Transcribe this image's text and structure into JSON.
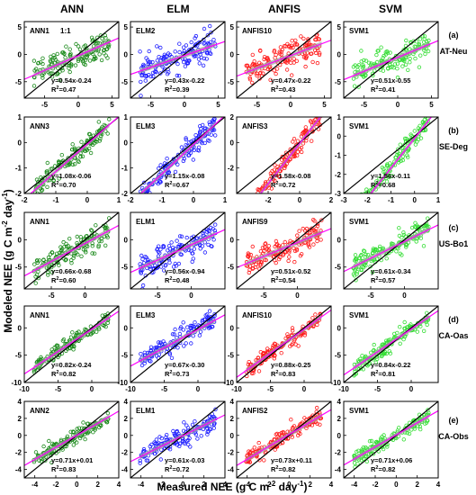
{
  "figure": {
    "ylabel": "Modeled NEE (g C m",
    "ylabel_sup": "-2",
    "ylabel_mid": " day",
    "ylabel_sup2": "-1",
    "ylabel_end": ")",
    "xlabel": "Measured NEE (g C m",
    "xlabel_sup": "-2",
    "xlabel_mid": " day",
    "xlabel_sup2": "-1",
    "xlabel_end": ")",
    "columns": [
      "ANN",
      "ELM",
      "ANFIS",
      "SVM"
    ],
    "row_tags": [
      {
        "letter": "(a)",
        "site": "AT-Neu"
      },
      {
        "letter": "(b)",
        "site": "SE-Deg"
      },
      {
        "letter": "(c)",
        "site": "US-Bo1"
      },
      {
        "letter": "(d)",
        "site": "CA-Oas"
      },
      {
        "letter": "(e)",
        "site": "CA-Obs"
      }
    ],
    "colors": {
      "ANN": "#1a8a1a",
      "ELM": "#1e1eff",
      "ANFIS": "#ff1a1a",
      "SVM": "#33dd33",
      "fit": "#ff00ff",
      "band": "#a0a0a0",
      "one_to_one": "#000000"
    },
    "one_to_one_label": "1:1"
  },
  "chart_data": [
    {
      "type": "scatter",
      "row": 0,
      "col": 0,
      "model": "ANN1",
      "eq": "y=0.54x-0.24",
      "r2": "0.47",
      "slope": 0.54,
      "intercept": -0.24,
      "xlim": [
        -8,
        6
      ],
      "ylim": [
        -8,
        6
      ],
      "ticks": [
        -5,
        0,
        5
      ],
      "xticks_shown": [
        -5,
        0,
        5
      ]
    },
    {
      "type": "scatter",
      "row": 0,
      "col": 1,
      "model": "ELM2",
      "eq": "y=0.43x-0.22",
      "r2": "0.39",
      "slope": 0.43,
      "intercept": -0.22,
      "xlim": [
        -8,
        6
      ],
      "ylim": [
        -8,
        6
      ],
      "ticks": [
        -5,
        0,
        5
      ],
      "xticks_shown": [
        -5,
        0,
        5
      ]
    },
    {
      "type": "scatter",
      "row": 0,
      "col": 2,
      "model": "ANFIS10",
      "eq": "y=0.47x-0.22",
      "r2": "0.43",
      "slope": 0.47,
      "intercept": -0.22,
      "xlim": [
        -8,
        6
      ],
      "ylim": [
        -8,
        6
      ],
      "ticks": [
        -5,
        0,
        5
      ],
      "xticks_shown": [
        -5,
        0,
        5
      ]
    },
    {
      "type": "scatter",
      "row": 0,
      "col": 3,
      "model": "SVM1",
      "eq": "y=0.51x-0.55",
      "r2": "0.41",
      "slope": 0.51,
      "intercept": -0.55,
      "xlim": [
        -8,
        6
      ],
      "ylim": [
        -8,
        6
      ],
      "ticks": [
        -5,
        0,
        5
      ],
      "xticks_shown": [
        -5,
        0,
        5
      ]
    },
    {
      "type": "scatter",
      "row": 1,
      "col": 0,
      "model": "ANN3",
      "eq": "y=1.08x-0.06",
      "r2": "0.70",
      "slope": 1.08,
      "intercept": -0.06,
      "xlim": [
        -2,
        1
      ],
      "ylim": [
        -2,
        1
      ],
      "ticks": [
        -2,
        -1,
        0,
        1
      ],
      "xticks_shown": [
        -2,
        -1,
        0,
        1
      ]
    },
    {
      "type": "scatter",
      "row": 1,
      "col": 1,
      "model": "ELM3",
      "eq": "y=1.15x-0.08",
      "r2": "0.67",
      "slope": 1.15,
      "intercept": -0.08,
      "xlim": [
        -2,
        1
      ],
      "ylim": [
        -2,
        1
      ],
      "ticks": [
        -2,
        -1,
        0,
        1
      ],
      "xticks_shown": [
        -2,
        -1,
        0,
        1
      ]
    },
    {
      "type": "scatter",
      "row": 1,
      "col": 2,
      "model": "ANFIS3",
      "eq": "y=1.58x-0.08",
      "r2": "0.72",
      "slope": 1.58,
      "intercept": -0.08,
      "xlim": [
        -4,
        2
      ],
      "ylim": [
        -4,
        2
      ],
      "ticks": [
        -2,
        0,
        2
      ],
      "xticks_shown": [
        -2,
        0,
        2
      ]
    },
    {
      "type": "scatter",
      "row": 1,
      "col": 3,
      "model": "SVM1",
      "eq": "y=1.56x-0.11",
      "r2": "0.68",
      "slope": 1.56,
      "intercept": -0.11,
      "xlim": [
        -3,
        1
      ],
      "ylim": [
        -3,
        1
      ],
      "ticks": [
        -3,
        -2,
        -1,
        0,
        1
      ],
      "xticks_shown": [
        -3,
        -2,
        -1,
        0,
        1
      ]
    },
    {
      "type": "scatter",
      "row": 2,
      "col": 0,
      "model": "ANN1",
      "eq": "y=0.66x-0.68",
      "r2": "0.60",
      "slope": 0.66,
      "intercept": -0.68,
      "xlim": [
        -9,
        5
      ],
      "ylim": [
        -9,
        5
      ],
      "ticks": [
        -5,
        0
      ],
      "xticks_shown": [
        -5,
        0
      ]
    },
    {
      "type": "scatter",
      "row": 2,
      "col": 1,
      "model": "ELM1",
      "eq": "y=0.56x-0.94",
      "r2": "0.48",
      "slope": 0.56,
      "intercept": -0.94,
      "xlim": [
        -9,
        5
      ],
      "ylim": [
        -9,
        5
      ],
      "ticks": [
        -5,
        0
      ],
      "xticks_shown": [
        -5,
        0
      ]
    },
    {
      "type": "scatter",
      "row": 2,
      "col": 2,
      "model": "ANFIS9",
      "eq": "y=0.51x-0.52",
      "r2": "0.54",
      "slope": 0.51,
      "intercept": -0.52,
      "xlim": [
        -9,
        5
      ],
      "ylim": [
        -9,
        5
      ],
      "ticks": [
        -5,
        0
      ],
      "xticks_shown": [
        -5,
        0
      ]
    },
    {
      "type": "scatter",
      "row": 2,
      "col": 3,
      "model": "SVM1",
      "eq": "y=0.61x-0.34",
      "r2": "0.57",
      "slope": 0.61,
      "intercept": -0.34,
      "xlim": [
        -9,
        5
      ],
      "ylim": [
        -9,
        5
      ],
      "ticks": [
        -5,
        0
      ],
      "xticks_shown": [
        -5,
        0
      ]
    },
    {
      "type": "scatter",
      "row": 3,
      "col": 0,
      "model": "ANN1",
      "eq": "y=0.82x-0.24",
      "r2": "0.82",
      "slope": 0.82,
      "intercept": -0.24,
      "xlim": [
        -10,
        4
      ],
      "ylim": [
        -10,
        4
      ],
      "ticks": [
        -10,
        -5,
        0
      ],
      "xticks_shown": [
        -10,
        -5,
        0
      ]
    },
    {
      "type": "scatter",
      "row": 3,
      "col": 1,
      "model": "ELM3",
      "eq": "y=0.67x-0.30",
      "r2": "0.73",
      "slope": 0.67,
      "intercept": -0.3,
      "xlim": [
        -10,
        4
      ],
      "ylim": [
        -10,
        4
      ],
      "ticks": [
        -10,
        -5,
        0
      ],
      "xticks_shown": [
        -10,
        -5,
        0
      ]
    },
    {
      "type": "scatter",
      "row": 3,
      "col": 2,
      "model": "ANFIS10",
      "eq": "y=0.88x-0.25",
      "r2": "0.83",
      "slope": 0.88,
      "intercept": -0.25,
      "xlim": [
        -10,
        4
      ],
      "ylim": [
        -10,
        4
      ],
      "ticks": [
        -10,
        -5,
        0
      ],
      "xticks_shown": [
        -10,
        -5,
        0
      ]
    },
    {
      "type": "scatter",
      "row": 3,
      "col": 3,
      "model": "SVM1",
      "eq": "y=0.84x-0.22",
      "r2": "0.81",
      "slope": 0.84,
      "intercept": -0.22,
      "xlim": [
        -10,
        4
      ],
      "ylim": [
        -10,
        4
      ],
      "ticks": [
        -10,
        -5,
        0
      ],
      "xticks_shown": [
        -10,
        -5,
        0
      ]
    },
    {
      "type": "scatter",
      "row": 4,
      "col": 0,
      "model": "ANN2",
      "eq": "y=0.71x+0.01",
      "r2": "0.83",
      "slope": 0.71,
      "intercept": 0.01,
      "xlim": [
        -5,
        4
      ],
      "ylim": [
        -5,
        4
      ],
      "ticks": [
        -4,
        -2,
        0,
        2,
        4
      ],
      "xticks_shown": [
        -4,
        -2,
        0,
        2,
        4
      ]
    },
    {
      "type": "scatter",
      "row": 4,
      "col": 1,
      "model": "ELM1",
      "eq": "y=0.61x-0.03",
      "r2": "0.72",
      "slope": 0.61,
      "intercept": -0.03,
      "xlim": [
        -5,
        4
      ],
      "ylim": [
        -5,
        4
      ],
      "ticks": [
        -4,
        -2,
        0,
        2,
        4
      ],
      "xticks_shown": [
        -4,
        -2,
        0,
        2,
        4
      ]
    },
    {
      "type": "scatter",
      "row": 4,
      "col": 2,
      "model": "ANFIS2",
      "eq": "y=0.73x+0.11",
      "r2": "0.82",
      "slope": 0.73,
      "intercept": 0.11,
      "xlim": [
        -5,
        4
      ],
      "ylim": [
        -5,
        4
      ],
      "ticks": [
        -4,
        -2,
        0,
        2,
        4
      ],
      "xticks_shown": [
        -4,
        -2,
        0,
        2,
        4
      ]
    },
    {
      "type": "scatter",
      "row": 4,
      "col": 3,
      "model": "SVM1",
      "eq": "y=0.71x+0.06",
      "r2": "0.82",
      "slope": 0.71,
      "intercept": 0.06,
      "xlim": [
        -5,
        4
      ],
      "ylim": [
        -5,
        4
      ],
      "ticks": [
        -4,
        -2,
        0,
        2,
        4
      ],
      "xticks_shown": [
        -4,
        -2,
        0,
        2,
        4
      ]
    }
  ]
}
